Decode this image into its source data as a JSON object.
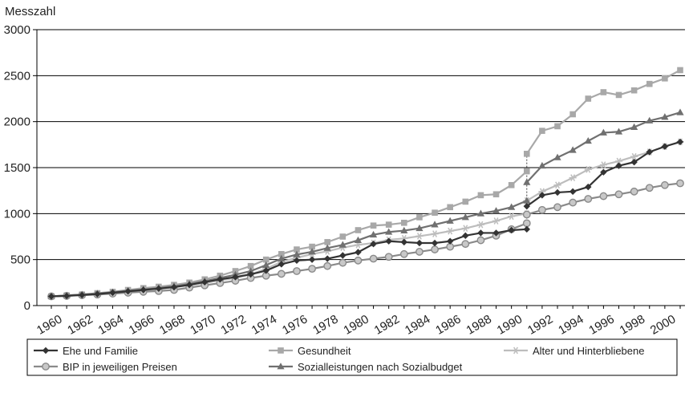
{
  "chart_data": {
    "type": "line",
    "ylabel": "Messzahl",
    "ylim": [
      0,
      3000
    ],
    "yticks": [
      0,
      500,
      1000,
      1500,
      2000,
      2500,
      3000
    ],
    "xlim": [
      1960,
      2001
    ],
    "xticks": [
      1960,
      1962,
      1964,
      1966,
      1968,
      1970,
      1972,
      1974,
      1976,
      1978,
      1980,
      1982,
      1984,
      1986,
      1988,
      1990,
      1992,
      1994,
      1996,
      1998,
      2000
    ],
    "grid": "horizontal",
    "legend_position": "bottom",
    "break_year": 1991,
    "series": [
      {
        "name": "Ehe und Familie",
        "color": "#333333",
        "marker": "diamond",
        "x": [
          1960,
          1961,
          1962,
          1963,
          1964,
          1965,
          1966,
          1967,
          1968,
          1969,
          1970,
          1971,
          1972,
          1973,
          1974,
          1975,
          1976,
          1977,
          1978,
          1979,
          1980,
          1981,
          1982,
          1983,
          1984,
          1985,
          1986,
          1987,
          1988,
          1989,
          1990,
          1991,
          1991,
          1992,
          1993,
          1994,
          1995,
          1996,
          1997,
          1998,
          1999,
          2000,
          2001
        ],
        "y": [
          100,
          105,
          115,
          125,
          140,
          155,
          170,
          185,
          200,
          225,
          255,
          285,
          310,
          340,
          380,
          450,
          490,
          500,
          510,
          545,
          580,
          670,
          700,
          690,
          680,
          680,
          700,
          760,
          790,
          790,
          820,
          830,
          1080,
          1200,
          1230,
          1240,
          1290,
          1450,
          1520,
          1560,
          1670,
          1730,
          1780
        ]
      },
      {
        "name": "Gesundheit",
        "color": "#a8a8a8",
        "marker": "square",
        "x": [
          1960,
          1961,
          1962,
          1963,
          1964,
          1965,
          1966,
          1967,
          1968,
          1969,
          1970,
          1971,
          1972,
          1973,
          1974,
          1975,
          1976,
          1977,
          1978,
          1979,
          1980,
          1981,
          1982,
          1983,
          1984,
          1985,
          1986,
          1987,
          1988,
          1989,
          1990,
          1991,
          1991,
          1992,
          1993,
          1994,
          1995,
          1996,
          1997,
          1998,
          1999,
          2000,
          2001
        ],
        "y": [
          100,
          110,
          120,
          135,
          150,
          170,
          190,
          205,
          225,
          250,
          285,
          325,
          375,
          430,
          500,
          560,
          610,
          640,
          690,
          750,
          820,
          870,
          880,
          900,
          960,
          1010,
          1070,
          1130,
          1200,
          1210,
          1310,
          1460,
          1650,
          1900,
          1950,
          2080,
          2250,
          2320,
          2290,
          2340,
          2410,
          2470,
          2560
        ]
      },
      {
        "name": "Alter und Hinterbliebene",
        "color": "#bdbdbd",
        "marker": "star",
        "x": [
          1960,
          1961,
          1962,
          1963,
          1964,
          1965,
          1966,
          1967,
          1968,
          1969,
          1970,
          1971,
          1972,
          1973,
          1974,
          1975,
          1976,
          1977,
          1978,
          1979,
          1980,
          1981,
          1982,
          1983,
          1984,
          1985,
          1986,
          1987,
          1988,
          1989,
          1990,
          1991,
          1991,
          1992,
          1993,
          1994,
          1995,
          1996,
          1997,
          1998,
          1999,
          2000,
          2001
        ],
        "y": [
          100,
          108,
          115,
          125,
          138,
          150,
          165,
          180,
          200,
          220,
          245,
          275,
          300,
          340,
          400,
          475,
          520,
          560,
          590,
          630,
          660,
          680,
          715,
          730,
          755,
          780,
          810,
          840,
          880,
          920,
          970,
          1000,
          1140,
          1240,
          1310,
          1390,
          1480,
          1530,
          1570,
          1620,
          1670,
          1730,
          1780
        ]
      },
      {
        "name": "BIP in jeweiligen Preisen",
        "color": "#8a8a8a",
        "marker": "circle",
        "x": [
          1960,
          1961,
          1962,
          1963,
          1964,
          1965,
          1966,
          1967,
          1968,
          1969,
          1970,
          1971,
          1972,
          1973,
          1974,
          1975,
          1976,
          1977,
          1978,
          1979,
          1980,
          1981,
          1982,
          1983,
          1984,
          1985,
          1986,
          1987,
          1988,
          1989,
          1990,
          1991,
          1991,
          1992,
          1993,
          1994,
          1995,
          1996,
          1997,
          1998,
          1999,
          2000,
          2001
        ],
        "y": [
          100,
          105,
          113,
          120,
          130,
          140,
          150,
          158,
          170,
          195,
          220,
          245,
          270,
          300,
          325,
          345,
          375,
          400,
          430,
          465,
          490,
          510,
          530,
          560,
          585,
          610,
          640,
          670,
          710,
          760,
          830,
          895,
          990,
          1040,
          1070,
          1120,
          1160,
          1190,
          1210,
          1240,
          1280,
          1310,
          1330
        ]
      },
      {
        "name": "Sozialleistungen nach Sozialbudget",
        "color": "#707070",
        "marker": "triangle",
        "x": [
          1960,
          1961,
          1962,
          1963,
          1964,
          1965,
          1966,
          1967,
          1968,
          1969,
          1970,
          1971,
          1972,
          1973,
          1974,
          1975,
          1976,
          1977,
          1978,
          1979,
          1980,
          1981,
          1982,
          1983,
          1984,
          1985,
          1986,
          1987,
          1988,
          1989,
          1990,
          1991,
          1991,
          1992,
          1993,
          1994,
          1995,
          1996,
          1997,
          1998,
          1999,
          2000,
          2001
        ],
        "y": [
          100,
          110,
          120,
          130,
          145,
          160,
          175,
          190,
          210,
          235,
          265,
          300,
          335,
          375,
          440,
          510,
          555,
          585,
          625,
          660,
          710,
          770,
          800,
          815,
          840,
          880,
          920,
          960,
          1000,
          1030,
          1070,
          1140,
          1340,
          1520,
          1610,
          1690,
          1790,
          1880,
          1890,
          1940,
          2010,
          2050,
          2100
        ]
      }
    ]
  }
}
